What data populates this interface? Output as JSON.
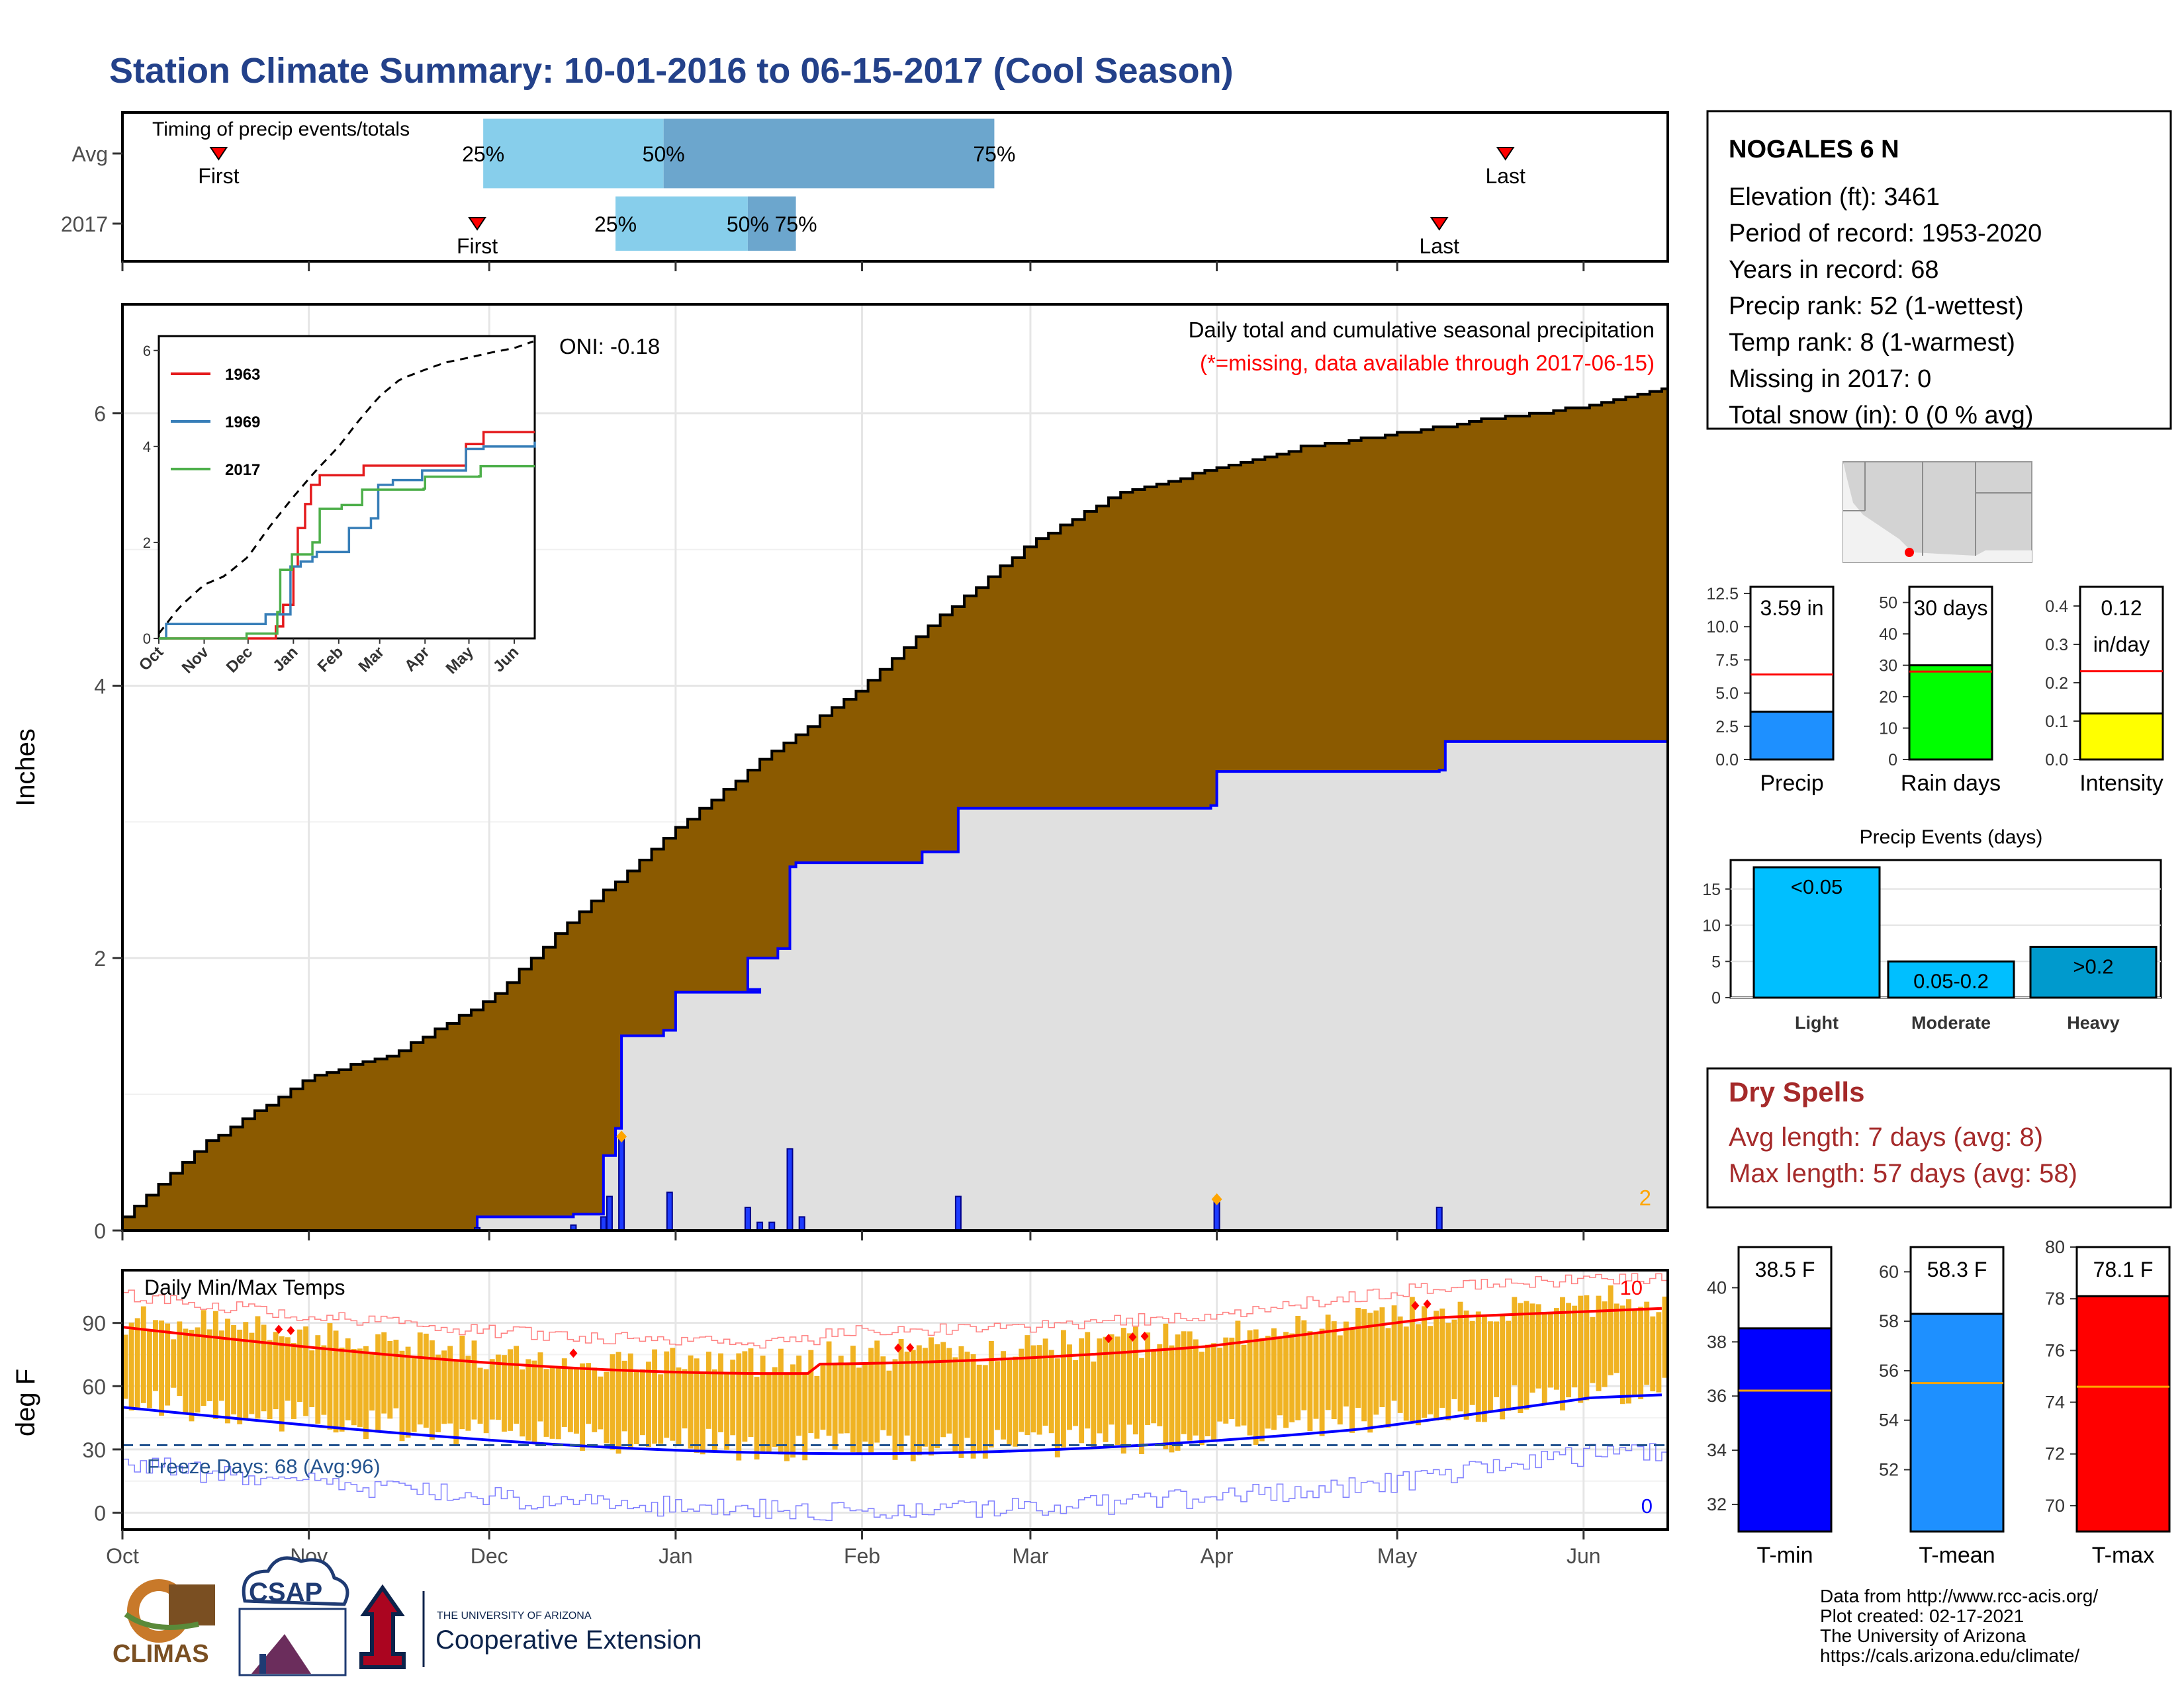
{
  "title": "Station Climate Summary: 10-01-2016 to 06-15-2017 (Cool Season)",
  "timing": {
    "label": "Timing of precip events/totals",
    "rows": [
      {
        "name": "Avg",
        "first": "First",
        "last": "Last",
        "first_date": "2016-10-17",
        "last_date": "2017-05-19",
        "p25": "2016-11-30",
        "p50": "2016-12-30",
        "p75": "2017-02-23",
        "l25": "25%",
        "l50": "50%",
        "l75": "75%"
      },
      {
        "name": "2017",
        "first": "First",
        "last": "Last",
        "first_date": "2016-11-29",
        "last_date": "2017-05-08",
        "p25": "2016-12-22",
        "p50": "2017-01-13",
        "p75": "2017-01-21",
        "l25": "25%",
        "l50": "50%",
        "l75": "75%"
      }
    ]
  },
  "station": {
    "name": "NOGALES 6 N",
    "lines": [
      "Elevation (ft): 3461",
      "Period of record: 1953-2020",
      "Years in record: 68",
      "Precip rank: 52 (1-wettest)",
      "Temp rank: 8 (1-warmest)",
      "Missing in 2017: 0",
      "Total snow (in): 0 (0 % avg)"
    ]
  },
  "main": {
    "ylabel": "Inches",
    "title": "Daily total and cumulative seasonal precipitation",
    "subtitle": "(*=missing, data available through 2017-06-15)",
    "oni": "ONI: -0.18",
    "corner": "2",
    "ymax": 6.8,
    "yticks": [
      0,
      2,
      4,
      6
    ]
  },
  "temps": {
    "title": "Daily Min/Max Temps",
    "ylabel": "deg F",
    "freeze": "Freeze Days: 68 (Avg:96)",
    "top_count": "10",
    "bottom_count": "0",
    "yticks": [
      0,
      30,
      60,
      90
    ],
    "ylim": [
      -8,
      115
    ]
  },
  "months": [
    "Oct",
    "Nov",
    "Dec",
    "Jan",
    "Feb",
    "Mar",
    "Apr",
    "May",
    "Jun"
  ],
  "inset": {
    "months": [
      "Oct",
      "Nov",
      "Dec",
      "Jan",
      "Feb",
      "Mar",
      "Apr",
      "May",
      "Jun"
    ],
    "yticks": [
      0,
      2,
      4,
      6
    ],
    "series": [
      {
        "name": "1963",
        "color": "#e41a1c"
      },
      {
        "name": "1969",
        "color": "#377eb8"
      },
      {
        "name": "2017",
        "color": "#4daf4a"
      }
    ]
  },
  "bars": [
    {
      "label": "Precip",
      "value_text": "3.59 in",
      "value": 3.59,
      "avg": 6.4,
      "ymax": 13,
      "yticks": [
        "0.0",
        "2.5",
        "5.0",
        "7.5",
        "10.0",
        "12.5"
      ],
      "tickvals": [
        0,
        2.5,
        5,
        7.5,
        10,
        12.5
      ],
      "color": "#1e90ff"
    },
    {
      "label": "Rain days",
      "value_text": "30 days",
      "value": 30,
      "avg": 28,
      "ymax": 55,
      "yticks": [
        "0",
        "10",
        "20",
        "30",
        "40",
        "50"
      ],
      "tickvals": [
        0,
        10,
        20,
        30,
        40,
        50
      ],
      "color": "#00ff00"
    },
    {
      "label": "Intensity",
      "value_text": "0.12\nin/day",
      "value": 0.12,
      "avg": 0.23,
      "ymax": 0.45,
      "yticks": [
        "0.0",
        "0.1",
        "0.2",
        "0.3",
        "0.4"
      ],
      "tickvals": [
        0,
        0.1,
        0.2,
        0.3,
        0.4
      ],
      "color": "#ffff00"
    }
  ],
  "events": {
    "title": "Precip Events (days)",
    "ymax": 19,
    "yticks": [
      0,
      5,
      10,
      15
    ],
    "categories": [
      {
        "label": "Light",
        "bar_text": "<0.05",
        "value": 18,
        "color": "#00bfff"
      },
      {
        "label": "Moderate",
        "bar_text": "0.05-0.2",
        "value": 5,
        "color": "#00bfff"
      },
      {
        "label": "Heavy",
        "bar_text": ">0.2",
        "value": 7,
        "color": "#009acd"
      }
    ]
  },
  "dry": {
    "title": "Dry Spells",
    "avg_line": "Avg length: 7 days (avg: 8)",
    "max_line": "Max length: 57 days (avg: 58)"
  },
  "tbars": [
    {
      "label": "T-min",
      "value_text": "38.5 F",
      "value": 38.5,
      "avg": 36.2,
      "ylim": [
        31,
        41.5
      ],
      "yticks": [
        32,
        34,
        36,
        38,
        40
      ],
      "color": "#0000ff"
    },
    {
      "label": "T-mean",
      "value_text": "58.3 F",
      "value": 58.3,
      "avg": 55.5,
      "ylim": [
        49.5,
        61
      ],
      "yticks": [
        52,
        54,
        56,
        58,
        60
      ],
      "color": "#1e90ff"
    },
    {
      "label": "T-max",
      "value_text": "78.1 F",
      "value": 78.1,
      "avg": 74.6,
      "ylim": [
        69,
        80
      ],
      "yticks": [
        70,
        72,
        74,
        76,
        78,
        80
      ],
      "color": "#ff0000"
    }
  ],
  "credits": [
    "Data from http://www.rcc-acis.org/",
    "Plot created: 02-17-2021",
    "The University of Arizona",
    "https://cals.arizona.edu/climate/"
  ],
  "logos": {
    "climas": "CLIMAS",
    "csap": "CSAP",
    "ua_small": "THE UNIVERSITY OF ARIZONA",
    "ua_big": "Cooperative Extension"
  },
  "chart_data": {
    "type": "area",
    "title": "Daily total and cumulative seasonal precipitation",
    "ylabel": "Inches",
    "xlabel": "",
    "ylim": [
      0,
      6.8
    ],
    "avg_cumulative": {
      "x": [
        "2016-10-01",
        "2016-10-15",
        "2016-11-01",
        "2016-11-15",
        "2016-12-01",
        "2016-12-15",
        "2017-01-01",
        "2017-01-15",
        "2017-02-01",
        "2017-02-15",
        "2017-03-01",
        "2017-03-15",
        "2017-04-01",
        "2017-04-15",
        "2017-05-01",
        "2017-05-15",
        "2017-06-01",
        "2017-06-15"
      ],
      "y": [
        0.1,
        0.65,
        1.12,
        1.3,
        1.7,
        2.3,
        2.95,
        3.45,
        4.0,
        4.55,
        5.05,
        5.4,
        5.6,
        5.75,
        5.85,
        5.95,
        6.05,
        6.2
      ]
    },
    "series_2017_cumulative": {
      "x": [
        "2016-10-01",
        "2016-11-29",
        "2016-12-15",
        "2016-12-20",
        "2016-12-22",
        "2016-12-23",
        "2016-12-24",
        "2016-12-30",
        "2017-01-01",
        "2017-01-15",
        "2017-01-13",
        "2017-01-18",
        "2017-01-20",
        "2017-01-21",
        "2017-02-11",
        "2017-02-17",
        "2017-03-31",
        "2017-04-01",
        "2017-05-08",
        "2017-05-09",
        "2017-06-15"
      ],
      "y": [
        0.0,
        0.1,
        0.12,
        0.55,
        0.75,
        1.43,
        1.43,
        1.47,
        1.75,
        1.77,
        2.0,
        2.07,
        2.67,
        2.7,
        2.78,
        3.1,
        3.12,
        3.37,
        3.38,
        3.59,
        3.59
      ]
    },
    "daily_2017": {
      "x": [
        "2016-11-29",
        "2016-12-15",
        "2016-12-20",
        "2016-12-21",
        "2016-12-23",
        "2016-12-31",
        "2017-01-13",
        "2017-01-15",
        "2017-01-17",
        "2017-01-20",
        "2017-01-22",
        "2017-02-17",
        "2017-04-01",
        "2017-05-08"
      ],
      "y": [
        0.02,
        0.04,
        0.1,
        0.25,
        0.68,
        0.28,
        0.17,
        0.06,
        0.06,
        0.6,
        0.1,
        0.25,
        0.22,
        0.17
      ]
    }
  }
}
